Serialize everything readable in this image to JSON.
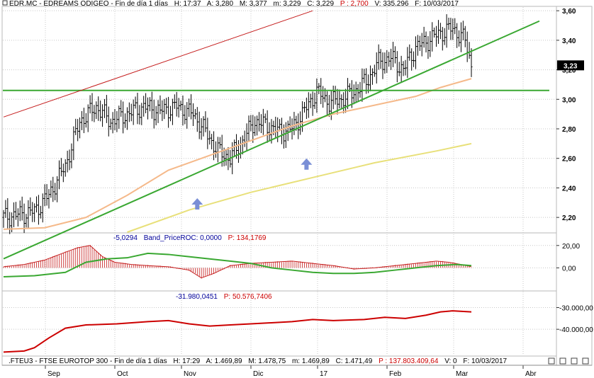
{
  "header": {
    "main": {
      "ticker": "EDR.MC - EDREAMS ODIGEO - Fin de día 1 días",
      "h": "H: 17:37",
      "a": "A: 3,280",
      "m": "M: 3,377",
      "mm": "m: 3,229",
      "c": "C: 3,229",
      "p": "P : 2,700",
      "v": "V: 335.296",
      "f": "F: 10/03/2017"
    },
    "roc": {
      "value": "-5,0294",
      "name": "Band_PriceROC: 0,0000",
      "p": "P: 134,1769"
    },
    "ind3": {
      "value": "-31.980,0451",
      "p": "P: 50.576,7406"
    },
    "bottom": {
      "ticker": ".FTEU3 - FTSE EUROTOP 300 - Fin de día 1 días",
      "h": "H: 17:29",
      "a": "A: 1.469,89",
      "m": "M: 1.478,75",
      "mm": "m: 1.469,89",
      "c": "C: 1.471,49",
      "p": "P : 137.803.409,64",
      "v": "V: 0",
      "f": "F: 10/03/2017"
    }
  },
  "colors": {
    "green_line": "#3aa832",
    "red_line": "#c41a1a",
    "ma_orange": "#f5b98a",
    "ma_yellow": "#e8e07a",
    "arrow": "#7a8fd6",
    "macd_bar": "#c41a1a",
    "signal_green": "#3aa832",
    "line_red": "#cc0000"
  },
  "chart_data": [
    {
      "type": "candlestick",
      "title": "EDR.MC - EDREAMS ODIGEO",
      "x_labels": [
        "Sep",
        "Oct",
        "Nov",
        "Dic",
        "17",
        "Feb",
        "Mar",
        "Abr"
      ],
      "y_ticks": [
        "3,60",
        "3,40",
        "3,20",
        "3,00",
        "2,80",
        "2,60",
        "2,40",
        "2,20"
      ],
      "ylim": [
        2.1,
        3.62
      ],
      "last_price_label": "3,23",
      "price_path": [
        [
          0,
          2.2
        ],
        [
          8,
          2.22
        ],
        [
          15,
          2.24
        ],
        [
          22,
          2.35
        ],
        [
          30,
          2.55
        ],
        [
          37,
          2.85
        ],
        [
          45,
          2.95
        ],
        [
          52,
          2.85
        ],
        [
          60,
          2.9
        ],
        [
          68,
          2.95
        ],
        [
          76,
          2.92
        ],
        [
          84,
          2.95
        ],
        [
          92,
          2.9
        ],
        [
          98,
          2.78
        ],
        [
          104,
          2.65
        ],
        [
          110,
          2.6
        ],
        [
          116,
          2.72
        ],
        [
          122,
          2.85
        ],
        [
          128,
          2.82
        ],
        [
          134,
          2.78
        ],
        [
          140,
          2.8
        ],
        [
          146,
          2.92
        ],
        [
          152,
          3.05
        ],
        [
          158,
          2.98
        ],
        [
          164,
          3.0
        ],
        [
          170,
          3.05
        ],
        [
          176,
          3.12
        ],
        [
          182,
          3.25
        ],
        [
          188,
          3.28
        ],
        [
          194,
          3.2
        ],
        [
          200,
          3.35
        ],
        [
          206,
          3.4
        ],
        [
          212,
          3.45
        ],
        [
          218,
          3.48
        ],
        [
          224,
          3.4
        ],
        [
          227,
          3.23
        ]
      ],
      "trend_support_green": [
        [
          0,
          1.92
        ],
        [
          260,
          3.53
        ]
      ],
      "horizontal_green": 3.06,
      "upper_channel_red": [
        [
          0,
          2.88
        ],
        [
          150,
          3.6
        ]
      ],
      "ma_orange": [
        [
          0,
          2.12
        ],
        [
          20,
          2.13
        ],
        [
          40,
          2.2
        ],
        [
          60,
          2.35
        ],
        [
          80,
          2.52
        ],
        [
          100,
          2.62
        ],
        [
          120,
          2.72
        ],
        [
          140,
          2.82
        ],
        [
          160,
          2.9
        ],
        [
          180,
          2.96
        ],
        [
          200,
          3.02
        ],
        [
          212,
          3.08
        ],
        [
          227,
          3.14
        ]
      ],
      "ma_yellow": [
        [
          60,
          2.1
        ],
        [
          90,
          2.25
        ],
        [
          120,
          2.37
        ],
        [
          150,
          2.47
        ],
        [
          180,
          2.57
        ],
        [
          210,
          2.65
        ],
        [
          227,
          2.7
        ]
      ],
      "arrows": [
        {
          "x": 94,
          "y": 2.33
        },
        {
          "x": 147,
          "y": 2.6
        }
      ]
    },
    {
      "type": "bar",
      "title": "Band_PriceROC",
      "y_ticks": [
        "20,00",
        "0,00"
      ],
      "ylim": [
        -20,
        30
      ],
      "hist": [
        [
          0,
          1
        ],
        [
          10,
          3
        ],
        [
          20,
          7
        ],
        [
          30,
          14
        ],
        [
          36,
          18
        ],
        [
          42,
          20
        ],
        [
          48,
          10
        ],
        [
          54,
          5
        ],
        [
          62,
          3
        ],
        [
          70,
          2
        ],
        [
          80,
          1
        ],
        [
          90,
          -2
        ],
        [
          96,
          -9
        ],
        [
          102,
          -5
        ],
        [
          110,
          2
        ],
        [
          120,
          4
        ],
        [
          130,
          5
        ],
        [
          140,
          6
        ],
        [
          150,
          4
        ],
        [
          160,
          2
        ],
        [
          170,
          -1
        ],
        [
          180,
          0
        ],
        [
          190,
          2
        ],
        [
          200,
          4
        ],
        [
          210,
          6
        ],
        [
          216,
          5
        ],
        [
          222,
          3
        ],
        [
          227,
          1
        ]
      ],
      "signal": [
        [
          0,
          -8
        ],
        [
          15,
          -7
        ],
        [
          30,
          -4
        ],
        [
          40,
          5
        ],
        [
          50,
          8
        ],
        [
          60,
          9
        ],
        [
          70,
          13
        ],
        [
          80,
          12
        ],
        [
          90,
          10
        ],
        [
          100,
          8
        ],
        [
          110,
          6
        ],
        [
          120,
          4
        ],
        [
          130,
          0
        ],
        [
          140,
          -2
        ],
        [
          150,
          -4
        ],
        [
          160,
          -5
        ],
        [
          170,
          -5
        ],
        [
          180,
          -4
        ],
        [
          190,
          -2
        ],
        [
          200,
          0
        ],
        [
          210,
          2
        ],
        [
          220,
          3
        ],
        [
          227,
          2
        ]
      ]
    },
    {
      "type": "line",
      "title": "",
      "y_ticks": [
        "-30.000,00",
        "-40.000,00"
      ],
      "ylim": [
        -52000,
        -23000
      ],
      "values": [
        [
          0,
          -50500
        ],
        [
          10,
          -50000
        ],
        [
          15,
          -48500
        ],
        [
          22,
          -44000
        ],
        [
          30,
          -39500
        ],
        [
          40,
          -38000
        ],
        [
          55,
          -37500
        ],
        [
          70,
          -36500
        ],
        [
          80,
          -36000
        ],
        [
          90,
          -37500
        ],
        [
          100,
          -38500
        ],
        [
          110,
          -38000
        ],
        [
          120,
          -37500
        ],
        [
          130,
          -37000
        ],
        [
          140,
          -36500
        ],
        [
          150,
          -35500
        ],
        [
          160,
          -36000
        ],
        [
          175,
          -35500
        ],
        [
          185,
          -34500
        ],
        [
          195,
          -35000
        ],
        [
          205,
          -33500
        ],
        [
          212,
          -32000
        ],
        [
          218,
          -31500
        ],
        [
          227,
          -32000
        ]
      ]
    }
  ]
}
